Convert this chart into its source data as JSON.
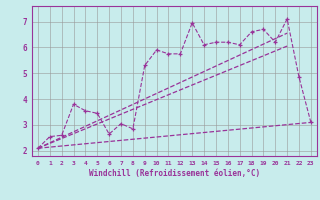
{
  "title": "",
  "xlabel": "Windchill (Refroidissement éolien,°C)",
  "bg_color": "#c8ecec",
  "line_color": "#993399",
  "grid_color": "#999999",
  "xlim": [
    -0.5,
    23.5
  ],
  "ylim": [
    1.8,
    7.6
  ],
  "yticks": [
    2,
    3,
    4,
    5,
    6,
    7
  ],
  "xticks": [
    0,
    1,
    2,
    3,
    4,
    5,
    6,
    7,
    8,
    9,
    10,
    11,
    12,
    13,
    14,
    15,
    16,
    17,
    18,
    19,
    20,
    21,
    22,
    23
  ],
  "series1_x": [
    0,
    1,
    2,
    3,
    4,
    5,
    6,
    7,
    8,
    9,
    10,
    11,
    12,
    13,
    14,
    15,
    16,
    17,
    18,
    19,
    20,
    21,
    22,
    23
  ],
  "series1_y": [
    2.1,
    2.55,
    2.6,
    3.8,
    3.55,
    3.45,
    2.65,
    3.05,
    2.85,
    5.3,
    5.9,
    5.75,
    5.75,
    6.95,
    6.1,
    6.2,
    6.2,
    6.1,
    6.6,
    6.7,
    6.2,
    7.1,
    4.85,
    3.1
  ],
  "series2_x": [
    0,
    21
  ],
  "series2_y": [
    2.1,
    6.55
  ],
  "series3_x": [
    0,
    23
  ],
  "series3_y": [
    2.1,
    3.1
  ],
  "series4_x": [
    0,
    21
  ],
  "series4_y": [
    2.1,
    6.05
  ]
}
